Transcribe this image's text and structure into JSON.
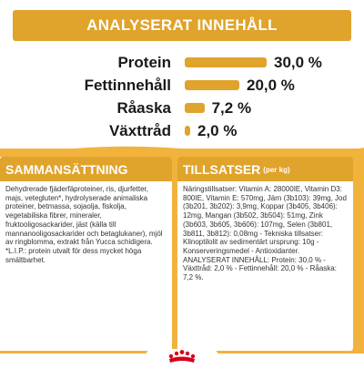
{
  "header": {
    "title": "ANALYSERAT INNEHÅLL"
  },
  "nutrients": [
    {
      "label": "Protein",
      "value": "30,0 %",
      "percent": 30.0
    },
    {
      "label": "Fettinnehåll",
      "value": "20,0 %",
      "percent": 20.0
    },
    {
      "label": "Råaska",
      "value": "7,2 %",
      "percent": 7.2
    },
    {
      "label": "Växttråd",
      "value": "2,0 %",
      "percent": 2.0
    }
  ],
  "composition": {
    "title": "SAMMANSÄTTNING",
    "text": "Dehydrerade fjäderfäproteiner, ris, djurfetter, majs, vetegluten*, hydrolyserade animaliska proteiner, betmassa, sojaolja, fiskolja, vegetabiliska fibrer, mineraler, fruktooligosackarider, jäst (källa till mannanooligosackarider och betaglukaner), mjöl av ringblomma, extrakt från Yucca schidigera. *L.I.P.: protein utvalt för dess mycket höga smältbarhet."
  },
  "additives": {
    "title": "TILLSATSER",
    "title_suffix": "(per kg)",
    "text": "Näringstillsatser: Vitamin A: 28000IE, Vitamin D3: 800IE, Vitamin E: 570mg, Järn (3b103): 39mg, Jod (3b201, 3b202): 3,9mg, Koppar (3b405, 3b406): 12mg, Mangan (3b502, 3b504): 51mg, Zink (3b603, 3b605, 3b606): 107mg, Selen (3b801, 3b811, 3b812): 0,08mg - Tekniska tillsatser: Klinoptilolit av sedimentärt ursprung: 10g - Konserveringsmedel - Antioxidanter. ANALYSERAT INNEHÅLL: Protein: 30,0 % - Växttråd: 2,0 % - Fettinnehåll: 20,0 % - Råaska: 7,2 %."
  },
  "colors": {
    "accent": "#e0a32b",
    "background_band": "#f2b33d",
    "logo_red": "#d6001c"
  },
  "logo": {
    "icon": "crown-icon"
  }
}
